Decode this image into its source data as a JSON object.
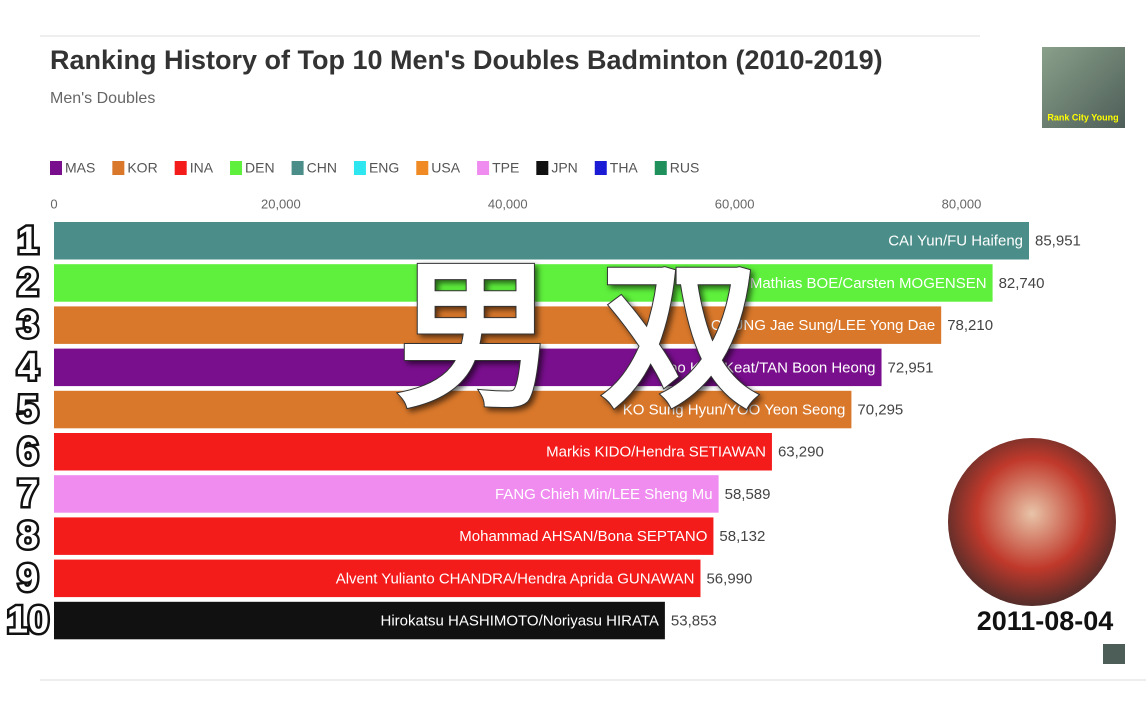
{
  "chart_data": {
    "type": "bar",
    "orientation": "horizontal",
    "title": "Ranking History of Top 10 Men's Doubles Badminton (2010-2019)",
    "subtitle": "Men's Doubles",
    "legend": [
      {
        "name": "MAS",
        "color": "#7a0f8e"
      },
      {
        "name": "KOR",
        "color": "#d9782b"
      },
      {
        "name": "INA",
        "color": "#f41b1b"
      },
      {
        "name": "DEN",
        "color": "#5ef03c"
      },
      {
        "name": "CHN",
        "color": "#4b8d88"
      },
      {
        "name": "ENG",
        "color": "#2ee6f0"
      },
      {
        "name": "USA",
        "color": "#f08a24"
      },
      {
        "name": "TPE",
        "color": "#f08cf0"
      },
      {
        "name": "JPN",
        "color": "#111111"
      },
      {
        "name": "THA",
        "color": "#1b1bd6"
      },
      {
        "name": "RUS",
        "color": "#1f8f5b"
      }
    ],
    "ranks": [
      "1",
      "2",
      "3",
      "4",
      "5",
      "6",
      "7",
      "8",
      "9",
      "10"
    ],
    "categories": [
      "CAI Yun/FU Haifeng",
      "Mathias BOE/Carsten MOGENSEN",
      "CHUNG Jae Sung/LEE Yong Dae",
      "Koo Kien Keat/TAN Boon Heong",
      "KO Sung Hyun/YOO Yeon Seong",
      "Markis KIDO/Hendra SETIAWAN",
      "FANG Chieh Min/LEE Sheng Mu",
      "Mohammad AHSAN/Bona SEPTANO",
      "Alvent Yulianto CHANDRA/Hendra Aprida GUNAWAN",
      "Hirokatsu HASHIMOTO/Noriyasu HIRATA"
    ],
    "values": [
      85951,
      82740,
      78210,
      72951,
      70295,
      63290,
      58589,
      58132,
      56990,
      53853
    ],
    "value_labels": [
      "85,951",
      "82,740",
      "78,210",
      "72,951",
      "70,295",
      "63,290",
      "58,589",
      "58,132",
      "56,990",
      "53,853"
    ],
    "colors": [
      "#4b8d88",
      "#5ef03c",
      "#d9782b",
      "#7a0f8e",
      "#d9782b",
      "#f41b1b",
      "#f08cf0",
      "#f41b1b",
      "#f41b1b",
      "#111111"
    ],
    "xlim": [
      0,
      85951
    ],
    "xticks": [
      0,
      {
        "value": 20000,
        "label": "20,000"
      },
      {
        "value": 40000,
        "label": "40,000"
      },
      {
        "value": 60000,
        "label": "60,000"
      },
      {
        "value": 80000,
        "label": "80,000"
      }
    ],
    "date": "2011-08-04",
    "overlay_text": "男 双",
    "logo_text": "Rank City Young"
  }
}
